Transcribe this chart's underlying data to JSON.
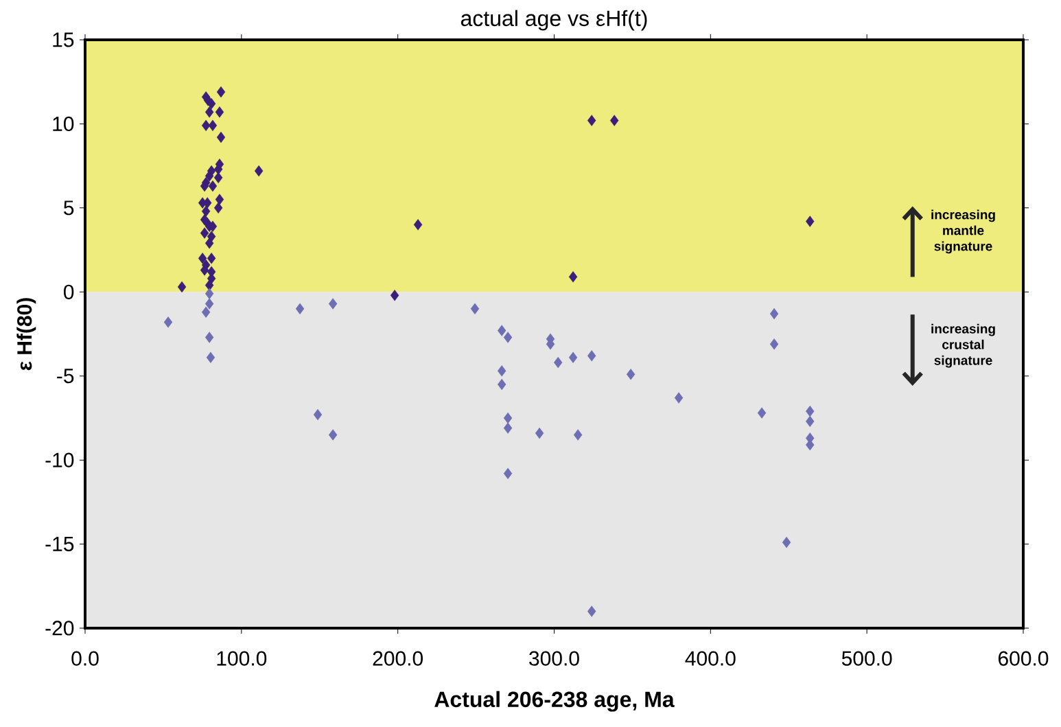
{
  "chart_data": {
    "type": "scatter",
    "title": "actual age vs εHf(t)",
    "xlabel": "Actual 206-238 age, Ma",
    "ylabel": "ε  Hf(80)",
    "xlim": [
      0,
      600
    ],
    "ylim": [
      -20,
      15
    ],
    "xticks": [
      {
        "value": 0,
        "label": "0.0"
      },
      {
        "value": 100,
        "label": "100.0"
      },
      {
        "value": 200,
        "label": "200.0"
      },
      {
        "value": 300,
        "label": "300.0"
      },
      {
        "value": 400,
        "label": "400.0"
      },
      {
        "value": 500,
        "label": "500.0"
      },
      {
        "value": 600,
        "label": "600.0"
      }
    ],
    "yticks": [
      -20,
      -15,
      -10,
      -5,
      0,
      5,
      10,
      15
    ],
    "marker": "diamond",
    "bands": [
      {
        "axis": "y",
        "from": 0,
        "to": 15,
        "color": "#eeec7c"
      },
      {
        "axis": "y",
        "from": -20,
        "to": 0,
        "color": "#e6e6e6"
      }
    ],
    "annotations": [
      "increasing mantle signature",
      "increasing crustal signature"
    ],
    "series": [
      {
        "color": "#3b1f78",
        "x": [
          86.9,
          77.3,
          78.6,
          80.8,
          86.0,
          79.5,
          77.3,
          81.6,
          86.9,
          86.0,
          85.2,
          111.1,
          80.8,
          79.5,
          85.2,
          77.3,
          76.4,
          81.6,
          86.0,
          75.1,
          78.2,
          85.2,
          77.3,
          76.4,
          78.2,
          79.5,
          81.6,
          76.4,
          80.8,
          79.5,
          75.1,
          80.8,
          77.3,
          76.4,
          80.8,
          80.8,
          79.5,
          61.9,
          198,
          212.9,
          324,
          338.5,
          312.1,
          463.6
        ],
        "values": [
          11.9,
          11.6,
          11.4,
          11.2,
          10.7,
          10.7,
          9.9,
          9.9,
          9.2,
          7.6,
          7.3,
          7.2,
          7.2,
          6.9,
          6.8,
          6.5,
          6.3,
          6.3,
          5.5,
          5.3,
          5.3,
          5.0,
          4.8,
          4.3,
          4.1,
          3.9,
          3.9,
          3.5,
          3.3,
          2.9,
          2.0,
          2.0,
          1.6,
          1.3,
          1.2,
          0.8,
          0.4,
          0.3,
          -0.2,
          4.0,
          10.2,
          10.2,
          0.9,
          4.2
        ]
      },
      {
        "color": "#6e6eb4",
        "x": [
          53.1,
          79.5,
          79.5,
          77.3,
          79.5,
          80.3,
          137.4,
          158.5,
          148.8,
          158.5,
          249.3,
          266.5,
          270.4,
          266.5,
          266.5,
          270.4,
          270.4,
          270.4,
          290.6,
          297.6,
          297.6,
          302.5,
          312.1,
          324,
          315.2,
          349,
          379.7,
          324,
          432.8,
          440.7,
          440.7,
          448.6,
          463.6,
          463.6,
          463.6,
          463.6
        ],
        "values": [
          -1.8,
          -0.1,
          -0.7,
          -1.2,
          -2.7,
          -3.9,
          -1.0,
          -0.7,
          -7.3,
          -8.5,
          -1.0,
          -2.3,
          -2.7,
          -4.7,
          -5.5,
          -7.5,
          -8.1,
          -10.8,
          -8.4,
          -2.8,
          -3.1,
          -4.2,
          -3.9,
          -3.8,
          -8.5,
          -4.9,
          -6.3,
          -19.0,
          -7.2,
          -1.3,
          -3.1,
          -14.9,
          -7.1,
          -7.7,
          -8.7,
          -9.1
        ]
      }
    ]
  }
}
